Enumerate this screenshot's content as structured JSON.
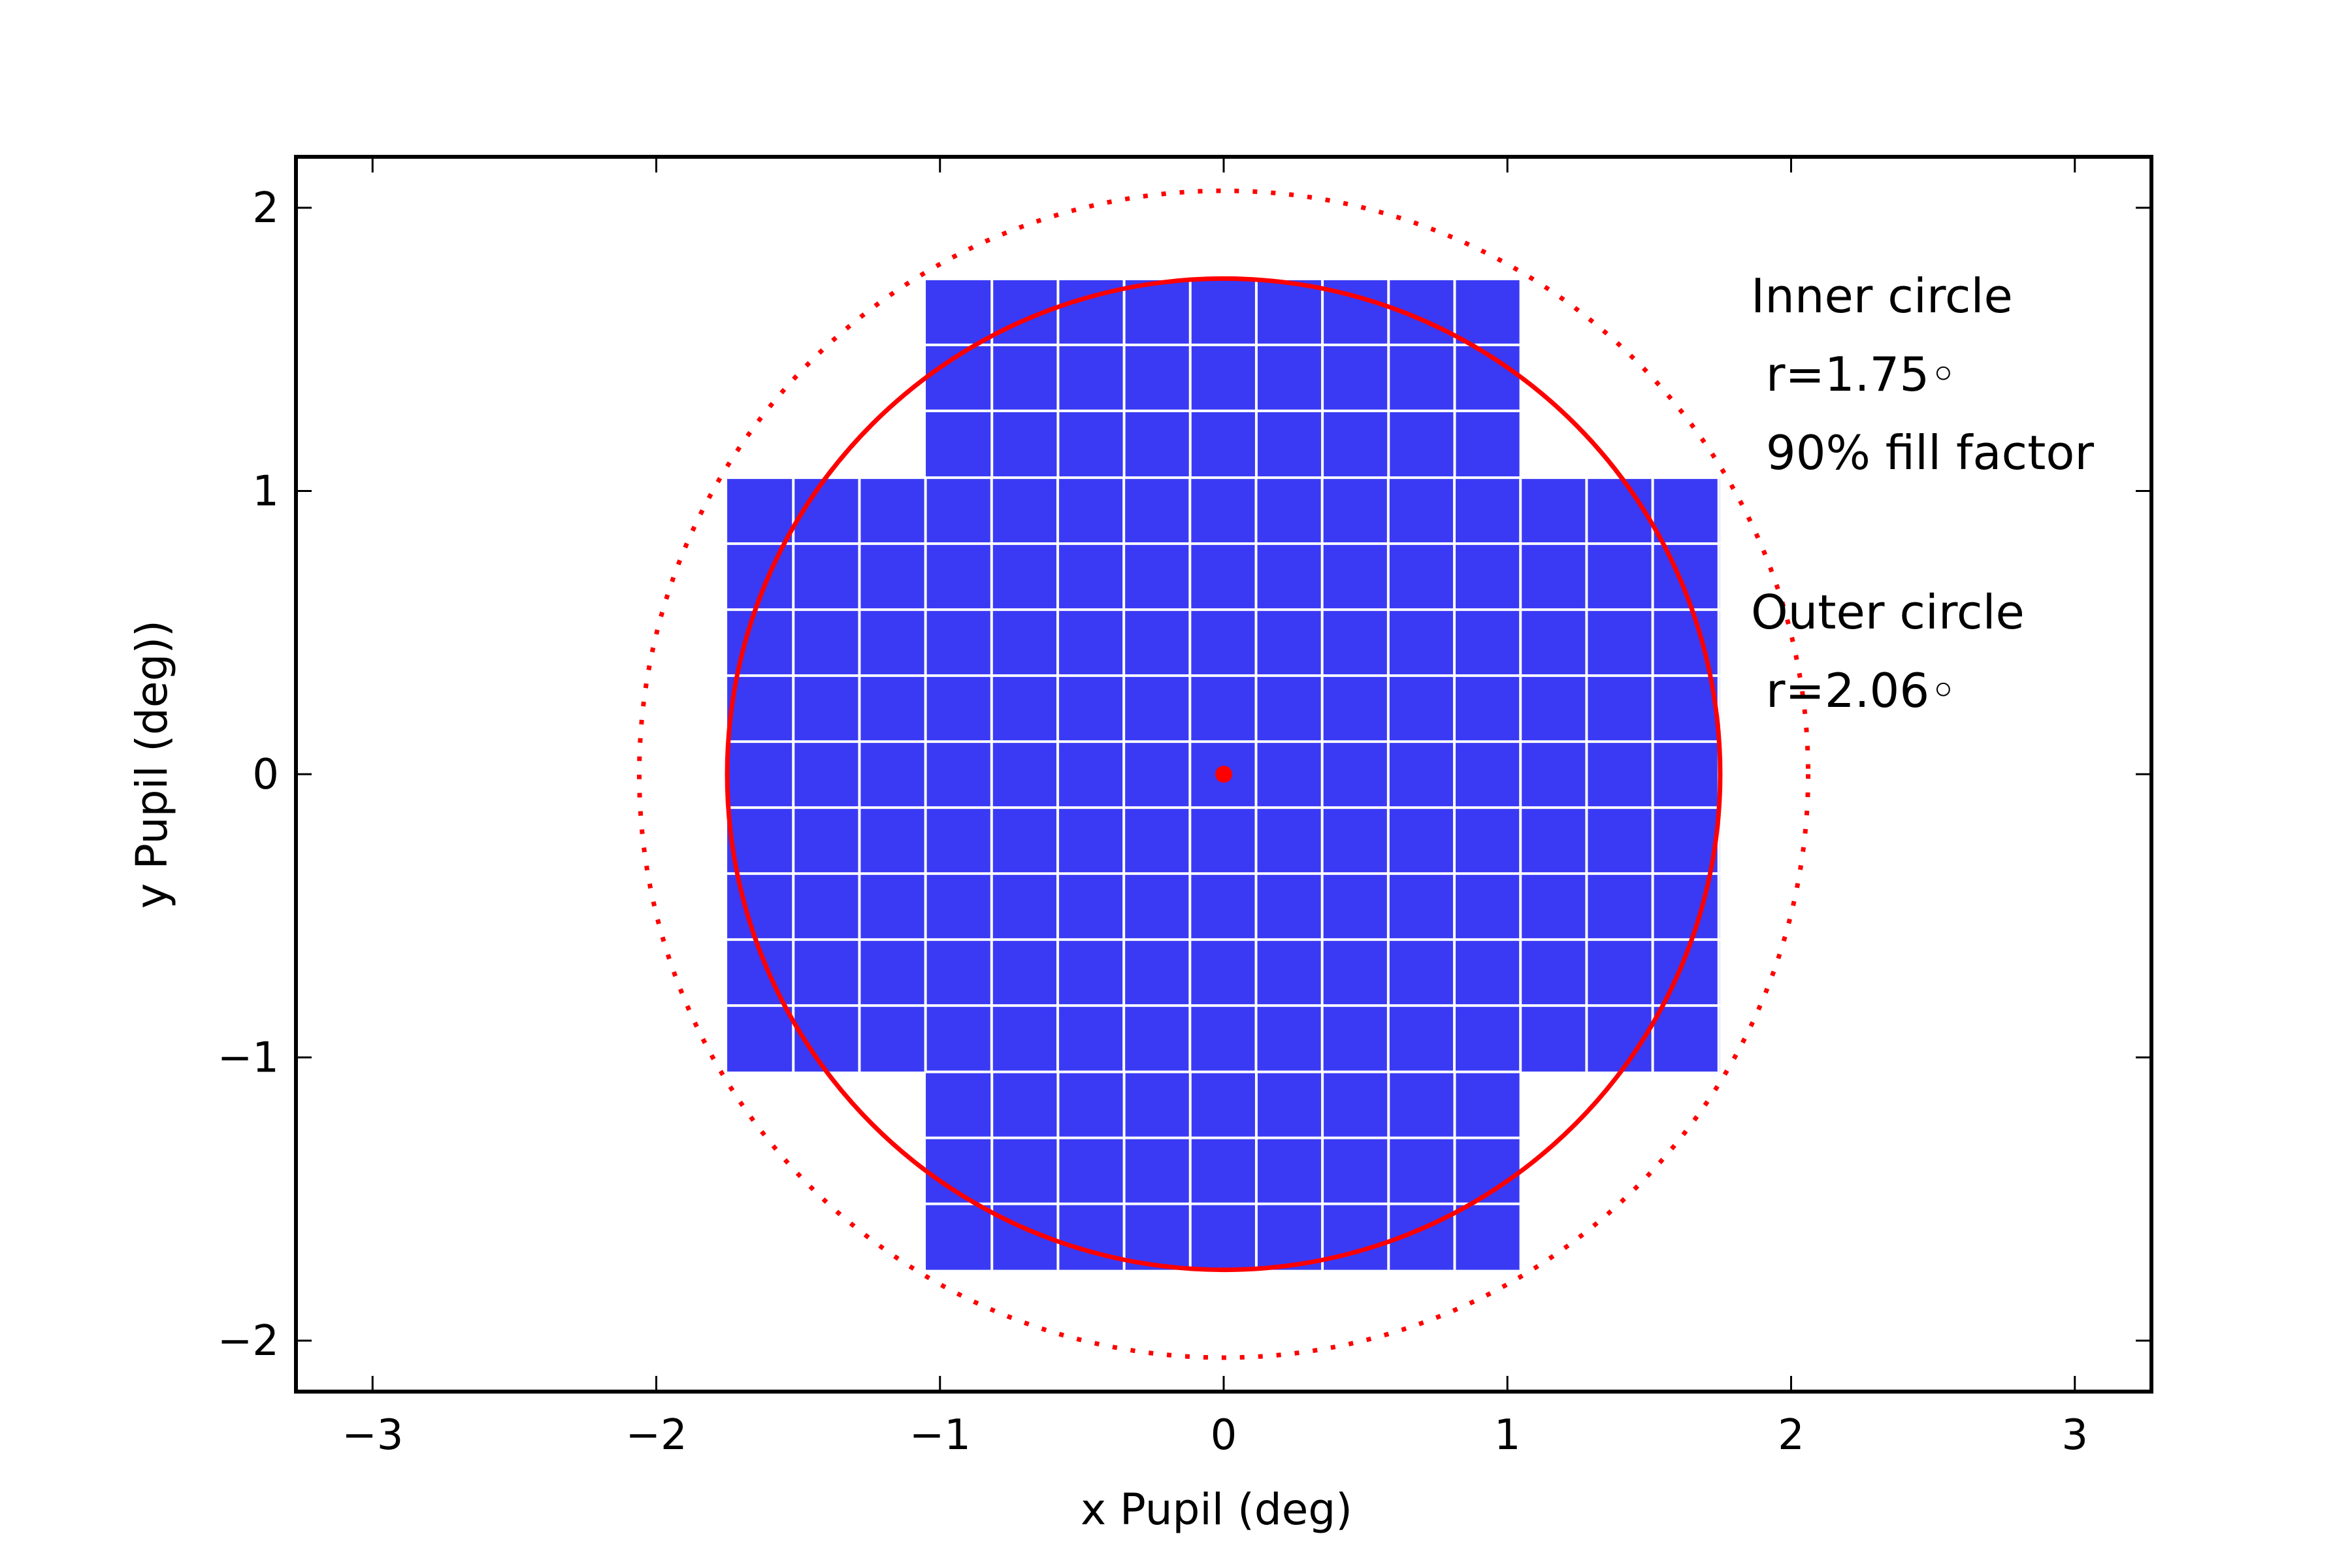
{
  "chart_data": {
    "type": "scatter",
    "title": "",
    "xlabel": "x Pupil (deg)",
    "ylabel": "y Pupil (deg))",
    "xlim": [
      -3.27,
      3.27
    ],
    "ylim": [
      -2.18,
      2.18
    ],
    "xticks": [
      {
        "value": -3,
        "label": "−3"
      },
      {
        "value": -2,
        "label": "−2"
      },
      {
        "value": -1,
        "label": "−1"
      },
      {
        "value": 0,
        "label": "0"
      },
      {
        "value": 1,
        "label": "1"
      },
      {
        "value": 2,
        "label": "2"
      },
      {
        "value": 3,
        "label": "3"
      }
    ],
    "yticks": [
      {
        "value": -2,
        "label": "−2"
      },
      {
        "value": -1,
        "label": "−1"
      },
      {
        "value": 0,
        "label": "0"
      },
      {
        "value": 1,
        "label": "1"
      },
      {
        "value": 2,
        "label": "2"
      }
    ],
    "grid": false,
    "colors": {
      "chips": "#3a3af5",
      "chip_gap": "#ffffff",
      "circles": "#ff0000",
      "axes": "#000000"
    },
    "chip_size_deg": 0.233,
    "chip_blocks": [
      {
        "x_min": -1.05,
        "x_max": 1.05,
        "y_min": 1.05,
        "y_max": 1.75
      },
      {
        "x_min": -1.75,
        "x_max": 1.75,
        "y_min": -1.05,
        "y_max": 1.05
      },
      {
        "x_min": -1.05,
        "x_max": 1.05,
        "y_min": -1.75,
        "y_max": -1.05
      }
    ],
    "inner_circle": {
      "center": [
        0,
        0
      ],
      "radius": 1.75,
      "style": "solid"
    },
    "outer_circle": {
      "center": [
        0,
        0
      ],
      "radius": 2.06,
      "style": "dotted"
    },
    "center_point": {
      "x": 0,
      "y": 0
    },
    "annotations": {
      "inner_title": "Inner circle",
      "inner_radius": " r=1.75◦",
      "inner_fill": " 90% fill factor",
      "outer_title": "Outer circle",
      "outer_radius": " r=2.06◦"
    }
  }
}
